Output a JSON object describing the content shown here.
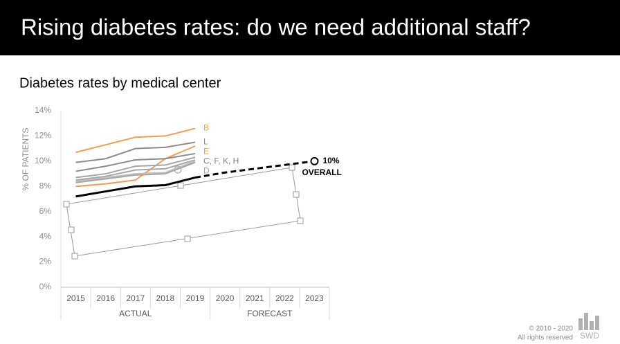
{
  "header": {
    "title": "Rising diabetes rates: do we need additional staff?"
  },
  "chart_data": {
    "type": "line",
    "title": "Diabetes rates by medical center",
    "y_label": "% OF PATIENTS",
    "categories": [
      "2015",
      "2016",
      "2017",
      "2018",
      "2019",
      "2020",
      "2021",
      "2022",
      "2023"
    ],
    "groups": [
      {
        "label": "ACTUAL",
        "span": [
          0,
          4
        ]
      },
      {
        "label": "FORECAST",
        "span": [
          5,
          8
        ]
      }
    ],
    "ylim": [
      0,
      14
    ],
    "yticks": [
      {
        "value": 0,
        "label": "0%"
      },
      {
        "value": 2,
        "label": "2%"
      },
      {
        "value": 4,
        "label": "4%"
      },
      {
        "value": 6,
        "label": "6%"
      },
      {
        "value": 8,
        "label": "8%"
      },
      {
        "value": 10,
        "label": "10%"
      },
      {
        "value": 12,
        "label": "12%"
      },
      {
        "value": 14,
        "label": "14%"
      }
    ],
    "series": [
      {
        "name": "B",
        "color": "#f29c4e",
        "values": [
          10.7,
          11.3,
          11.9,
          12.0,
          12.6,
          null,
          null,
          null,
          null
        ]
      },
      {
        "name": "L",
        "color": "#8c8c8c",
        "values": [
          9.9,
          10.2,
          11.0,
          11.1,
          11.5,
          null,
          null,
          null,
          null
        ]
      },
      {
        "name": "E",
        "color": "#f29c4e",
        "values": [
          8.0,
          8.2,
          8.5,
          10.2,
          11.2,
          null,
          null,
          null,
          null
        ]
      },
      {
        "color": "#8c8c8c",
        "values": [
          9.2,
          9.6,
          10.1,
          10.2,
          10.6,
          null,
          null,
          null,
          null
        ]
      },
      {
        "color": "#a6a6a6",
        "values": [
          8.7,
          9.0,
          9.6,
          9.7,
          10.3,
          null,
          null,
          null,
          null
        ]
      },
      {
        "color": "#a6a6a6",
        "values": [
          8.5,
          8.8,
          9.3,
          9.4,
          10.1,
          null,
          null,
          null,
          null
        ]
      },
      {
        "color": "#bfbfbf",
        "values": [
          8.4,
          8.7,
          9.0,
          9.1,
          10.0,
          null,
          null,
          null,
          null
        ]
      },
      {
        "name": "D",
        "color": "#a6a6a6",
        "values": [
          8.3,
          8.6,
          8.9,
          9.0,
          9.9,
          null,
          null,
          null,
          null
        ]
      },
      {
        "color": "#000000",
        "values": [
          7.2,
          7.6,
          8.0,
          8.1,
          8.7,
          null,
          null,
          null,
          null
        ]
      },
      {
        "color": "#000000",
        "dashed": true,
        "values": [
          null,
          null,
          null,
          null,
          8.7,
          9.1,
          9.4,
          9.7,
          10.0
        ]
      }
    ],
    "group_label": {
      "text": "C, F, K, H",
      "series": [
        3,
        4,
        5,
        6
      ],
      "color": "#7f7f7f"
    },
    "annotations": [
      {
        "text": "10%"
      },
      {
        "text": "OVERALL"
      }
    ]
  },
  "footer": {
    "copyright": "© 2010 - 2020",
    "rights": "All rights reserved",
    "brand": "SWD"
  }
}
